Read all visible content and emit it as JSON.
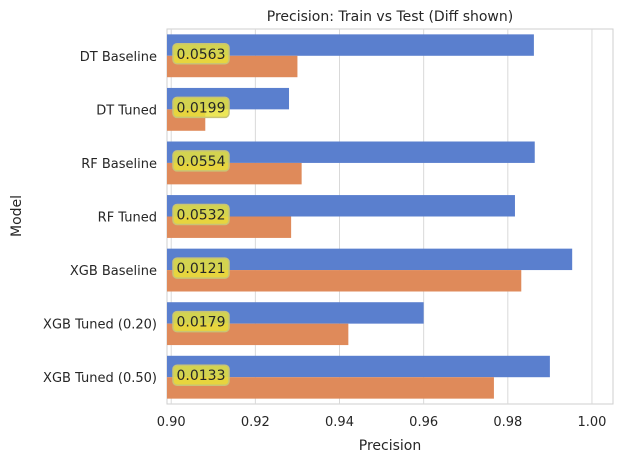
{
  "chart_data": {
    "type": "bar",
    "orientation": "horizontal",
    "title": "Precision: Train vs Test (Diff shown)",
    "xlabel": "Precision",
    "ylabel": "Model",
    "xlim": [
      0.899,
      1.005
    ],
    "xticks": [
      0.9,
      0.92,
      0.94,
      0.96,
      0.98,
      1.0
    ],
    "xtick_labels": [
      "0.90",
      "0.92",
      "0.94",
      "0.96",
      "0.98",
      "1.00"
    ],
    "grid": "vertical",
    "categories": [
      "DT Baseline",
      "DT Tuned",
      "RF Baseline",
      "RF Tuned",
      "XGB Baseline",
      "XGB Tuned (0.20)",
      "XGB Tuned (0.50)"
    ],
    "series": [
      {
        "values": [
          0.9862,
          0.928,
          0.9864,
          0.9817,
          0.9953,
          0.96,
          0.99
        ],
        "color": "#5a7fce"
      },
      {
        "values": [
          0.93,
          0.9081,
          0.931,
          0.9285,
          0.9832,
          0.9421,
          0.9767
        ],
        "color": "#df8a5a"
      }
    ],
    "annotations": [
      "0.0563",
      "0.0199",
      "0.0554",
      "0.0532",
      "0.0121",
      "0.0179",
      "0.0133"
    ],
    "annotation_style": {
      "background": "#e9e23a",
      "border": "#c9c474"
    }
  }
}
